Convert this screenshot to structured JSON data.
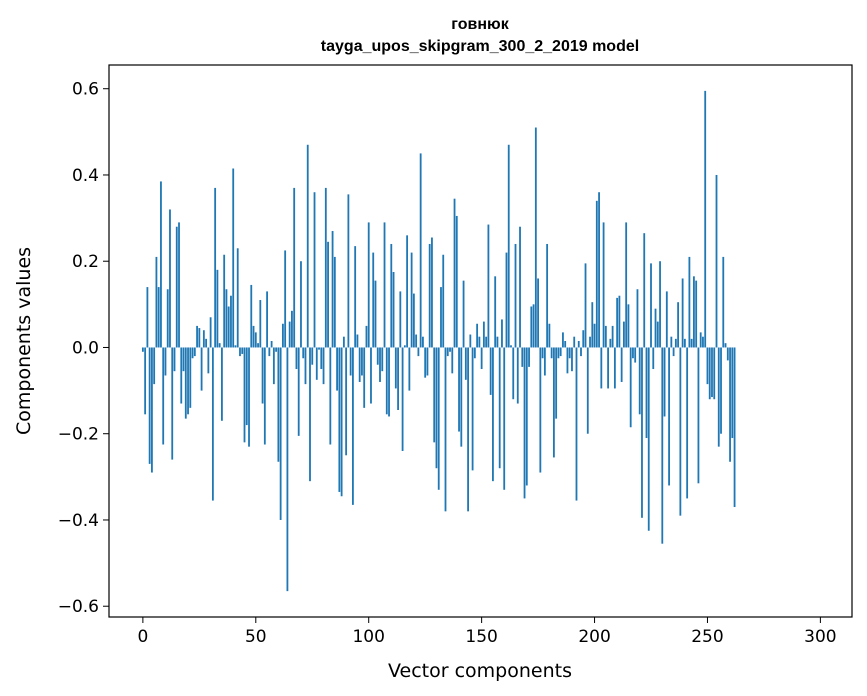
{
  "chart_data": {
    "type": "bar",
    "title": "говнюк",
    "subtitle": "tayga_upos_skipgram_300_2_2019 model",
    "xlabel": "Vector components",
    "ylabel": "Components values",
    "xlim": [
      -15,
      314
    ],
    "ylim": [
      -0.625,
      0.655
    ],
    "xticks": [
      0,
      50,
      100,
      150,
      200,
      250,
      300
    ],
    "xtick_labels": [
      "0",
      "50",
      "100",
      "150",
      "200",
      "250",
      "300"
    ],
    "yticks": [
      -0.6,
      -0.4,
      -0.2,
      0.0,
      0.2,
      0.4,
      0.6
    ],
    "ytick_labels": [
      "−0.6",
      "−0.4",
      "−0.2",
      "0.0",
      "0.2",
      "0.4",
      "0.6"
    ],
    "grid": false,
    "bar_color": "#1f77b4",
    "values": [
      -0.01,
      -0.155,
      0.14,
      -0.27,
      -0.29,
      -0.085,
      0.21,
      0.14,
      0.385,
      -0.225,
      -0.065,
      0.135,
      0.32,
      -0.26,
      -0.055,
      0.28,
      0.29,
      -0.13,
      -0.055,
      -0.165,
      -0.155,
      -0.14,
      -0.025,
      -0.02,
      0.05,
      0.045,
      -0.1,
      0.04,
      0.02,
      -0.06,
      0.07,
      -0.355,
      0.37,
      0.18,
      0.01,
      -0.17,
      0.215,
      0.135,
      0.095,
      0.12,
      0.415,
      0.005,
      0.23,
      -0.02,
      -0.015,
      -0.22,
      -0.18,
      -0.23,
      0.145,
      0.05,
      0.035,
      0.01,
      0.11,
      -0.13,
      -0.225,
      0.13,
      -0.02,
      0.015,
      -0.085,
      -0.01,
      -0.265,
      -0.4,
      0.055,
      0.225,
      -0.565,
      0.06,
      0.085,
      0.37,
      -0.05,
      -0.205,
      0.2,
      -0.025,
      -0.085,
      0.47,
      -0.31,
      -0.04,
      0.36,
      -0.075,
      -0.005,
      -0.05,
      -0.085,
      0.37,
      0.245,
      -0.225,
      0.27,
      0.21,
      -0.1,
      -0.335,
      -0.345,
      0.025,
      -0.25,
      0.355,
      -0.065,
      -0.365,
      0.235,
      0.03,
      -0.08,
      -0.065,
      -0.14,
      0.05,
      0.29,
      -0.13,
      0.22,
      0.155,
      -0.04,
      -0.08,
      -0.055,
      0.29,
      -0.155,
      -0.16,
      0.24,
      0.175,
      -0.095,
      -0.145,
      0.13,
      -0.24,
      0.005,
      0.26,
      -0.1,
      0.22,
      0.125,
      0.03,
      -0.02,
      0.45,
      0.025,
      -0.07,
      -0.065,
      0.24,
      0.255,
      -0.22,
      -0.28,
      -0.33,
      0.14,
      0.215,
      -0.38,
      -0.02,
      -0.01,
      -0.06,
      0.345,
      0.305,
      -0.195,
      -0.23,
      0.155,
      -0.075,
      -0.38,
      0.03,
      -0.285,
      -0.025,
      0.055,
      0.025,
      -0.05,
      0.06,
      0.025,
      0.285,
      -0.11,
      -0.31,
      0.165,
      0.025,
      -0.28,
      0.065,
      -0.33,
      0.22,
      0.47,
      0.005,
      -0.12,
      0.24,
      -0.13,
      0.28,
      -0.045,
      -0.35,
      -0.32,
      -0.045,
      0.095,
      0.1,
      0.51,
      0.16,
      -0.29,
      -0.025,
      -0.065,
      0.24,
      0.055,
      -0.025,
      -0.255,
      -0.165,
      -0.025,
      -0.02,
      0.035,
      0.015,
      -0.06,
      -0.025,
      -0.055,
      0.025,
      -0.355,
      0.015,
      -0.02,
      0.04,
      0.195,
      -0.2,
      0.025,
      0.105,
      0.055,
      0.34,
      0.36,
      -0.095,
      0.29,
      0.05,
      -0.095,
      0.02,
      0.05,
      -0.095,
      0.115,
      0.12,
      -0.08,
      0.06,
      0.29,
      0.1,
      -0.185,
      -0.025,
      -0.035,
      0.135,
      -0.155,
      -0.395,
      0.265,
      -0.21,
      -0.425,
      0.195,
      -0.05,
      0.09,
      0.06,
      0.2,
      -0.455,
      -0.16,
      0.13,
      -0.32,
      0.025,
      -0.02,
      0.02,
      0.105,
      -0.39,
      0.16,
      0.02,
      -0.35,
      0.21,
      0.02,
      0.165,
      0.155,
      -0.315,
      0.035,
      0.025,
      0.595,
      -0.085,
      -0.12,
      -0.115,
      -0.12,
      0.4,
      -0.23,
      -0.2,
      0.21,
      0.01,
      -0.03,
      -0.265,
      -0.21,
      -0.37
    ]
  }
}
